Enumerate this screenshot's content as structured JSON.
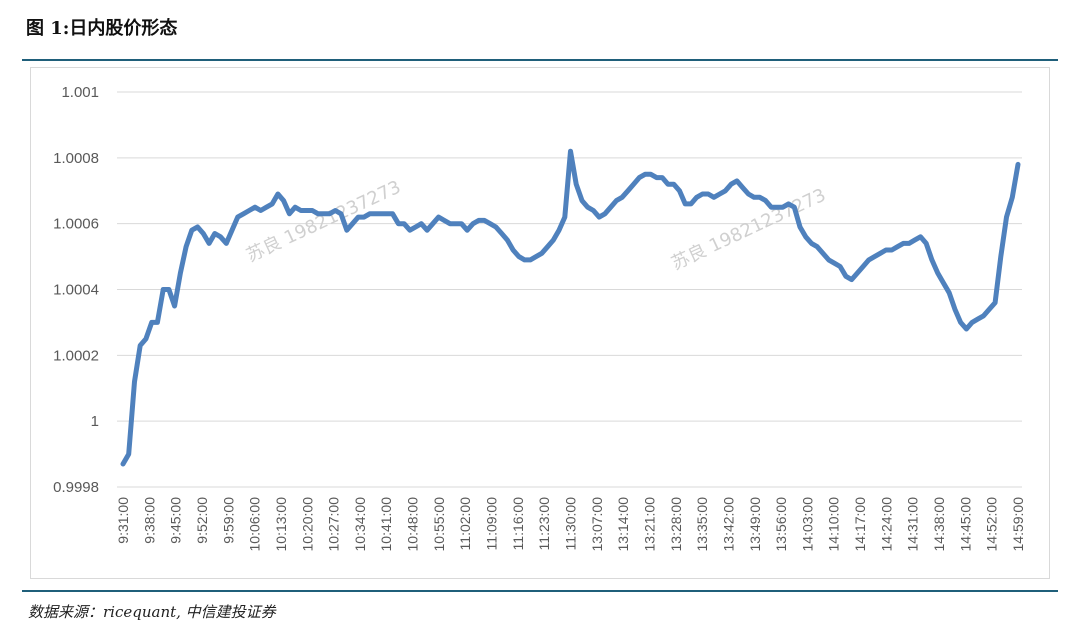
{
  "figure": {
    "title": "图 1:日内股价形态",
    "source": "数据来源：ricequant, 中信建投证券"
  },
  "watermark": {
    "texts": [
      "苏良 19821237273",
      "苏良 19821237273"
    ]
  },
  "colors": {
    "line": "#4f81bd",
    "grid": "#d9d9d9",
    "tick": "#595959",
    "rule": "#1f5f7a",
    "watermark": "#d0d0d0"
  },
  "chart_data": {
    "type": "line",
    "title": "",
    "xlabel": "",
    "ylabel": "",
    "ylim": [
      0.9998,
      1.001
    ],
    "grid": true,
    "legend": "none",
    "y_ticks": [
      {
        "value": 1.001,
        "label": "1.001"
      },
      {
        "value": 1.0008,
        "label": "1.0008"
      },
      {
        "value": 1.0006,
        "label": "1.0006"
      },
      {
        "value": 1.0004,
        "label": "1.0004"
      },
      {
        "value": 1.0002,
        "label": "1.0002"
      },
      {
        "value": 1.0,
        "label": "1"
      },
      {
        "value": 0.9998,
        "label": "0.9998"
      }
    ],
    "x_tick_labels": [
      "9:31:00",
      "9:38:00",
      "9:45:00",
      "9:52:00",
      "9:59:00",
      "10:06:00",
      "10:13:00",
      "10:20:00",
      "10:27:00",
      "10:34:00",
      "10:41:00",
      "10:48:00",
      "10:55:00",
      "11:02:00",
      "11:09:00",
      "11:16:00",
      "11:23:00",
      "11:30:00",
      "13:07:00",
      "13:14:00",
      "13:21:00",
      "13:28:00",
      "13:35:00",
      "13:42:00",
      "13:49:00",
      "13:56:00",
      "14:03:00",
      "14:10:00",
      "14:17:00",
      "14:24:00",
      "14:31:00",
      "14:38:00",
      "14:45:00",
      "14:52:00",
      "14:59:00"
    ],
    "series": [
      {
        "values": [
          0.99987,
          0.9999,
          1.00012,
          1.00023,
          1.00025,
          1.0003,
          1.0003,
          1.0004,
          1.0004,
          1.00035,
          1.00045,
          1.00053,
          1.00058,
          1.00059,
          1.00057,
          1.00054,
          1.00057,
          1.00056,
          1.00054,
          1.00058,
          1.00062,
          1.00063,
          1.00064,
          1.00065,
          1.00064,
          1.00065,
          1.00066,
          1.00069,
          1.00067,
          1.00063,
          1.00065,
          1.00064,
          1.00064,
          1.00064,
          1.00063,
          1.00063,
          1.00063,
          1.00064,
          1.00063,
          1.00058,
          1.0006,
          1.00062,
          1.00062,
          1.00063,
          1.00063,
          1.00063,
          1.00063,
          1.00063,
          1.0006,
          1.0006,
          1.00058,
          1.00059,
          1.0006,
          1.00058,
          1.0006,
          1.00062,
          1.00061,
          1.0006,
          1.0006,
          1.0006,
          1.00058,
          1.0006,
          1.00061,
          1.00061,
          1.0006,
          1.00059,
          1.00057,
          1.00055,
          1.00052,
          1.0005,
          1.00049,
          1.00049,
          1.0005,
          1.00051,
          1.00053,
          1.00055,
          1.00058,
          1.00062,
          1.00082,
          1.00072,
          1.00067,
          1.00065,
          1.00064,
          1.00062,
          1.00063,
          1.00065,
          1.00067,
          1.00068,
          1.0007,
          1.00072,
          1.00074,
          1.00075,
          1.00075,
          1.00074,
          1.00074,
          1.00072,
          1.00072,
          1.0007,
          1.00066,
          1.00066,
          1.00068,
          1.00069,
          1.00069,
          1.00068,
          1.00069,
          1.0007,
          1.00072,
          1.00073,
          1.00071,
          1.00069,
          1.00068,
          1.00068,
          1.00067,
          1.00065,
          1.00065,
          1.00065,
          1.00066,
          1.00065,
          1.00059,
          1.00056,
          1.00054,
          1.00053,
          1.00051,
          1.00049,
          1.00048,
          1.00047,
          1.00044,
          1.00043,
          1.00045,
          1.00047,
          1.00049,
          1.0005,
          1.00051,
          1.00052,
          1.00052,
          1.00053,
          1.00054,
          1.00054,
          1.00055,
          1.00056,
          1.00054,
          1.00049,
          1.00045,
          1.00042,
          1.00039,
          1.00034,
          1.0003,
          1.00028,
          1.0003,
          1.00031,
          1.00032,
          1.00034,
          1.00036,
          1.0005,
          1.00062,
          1.00068,
          1.00078
        ]
      }
    ]
  }
}
